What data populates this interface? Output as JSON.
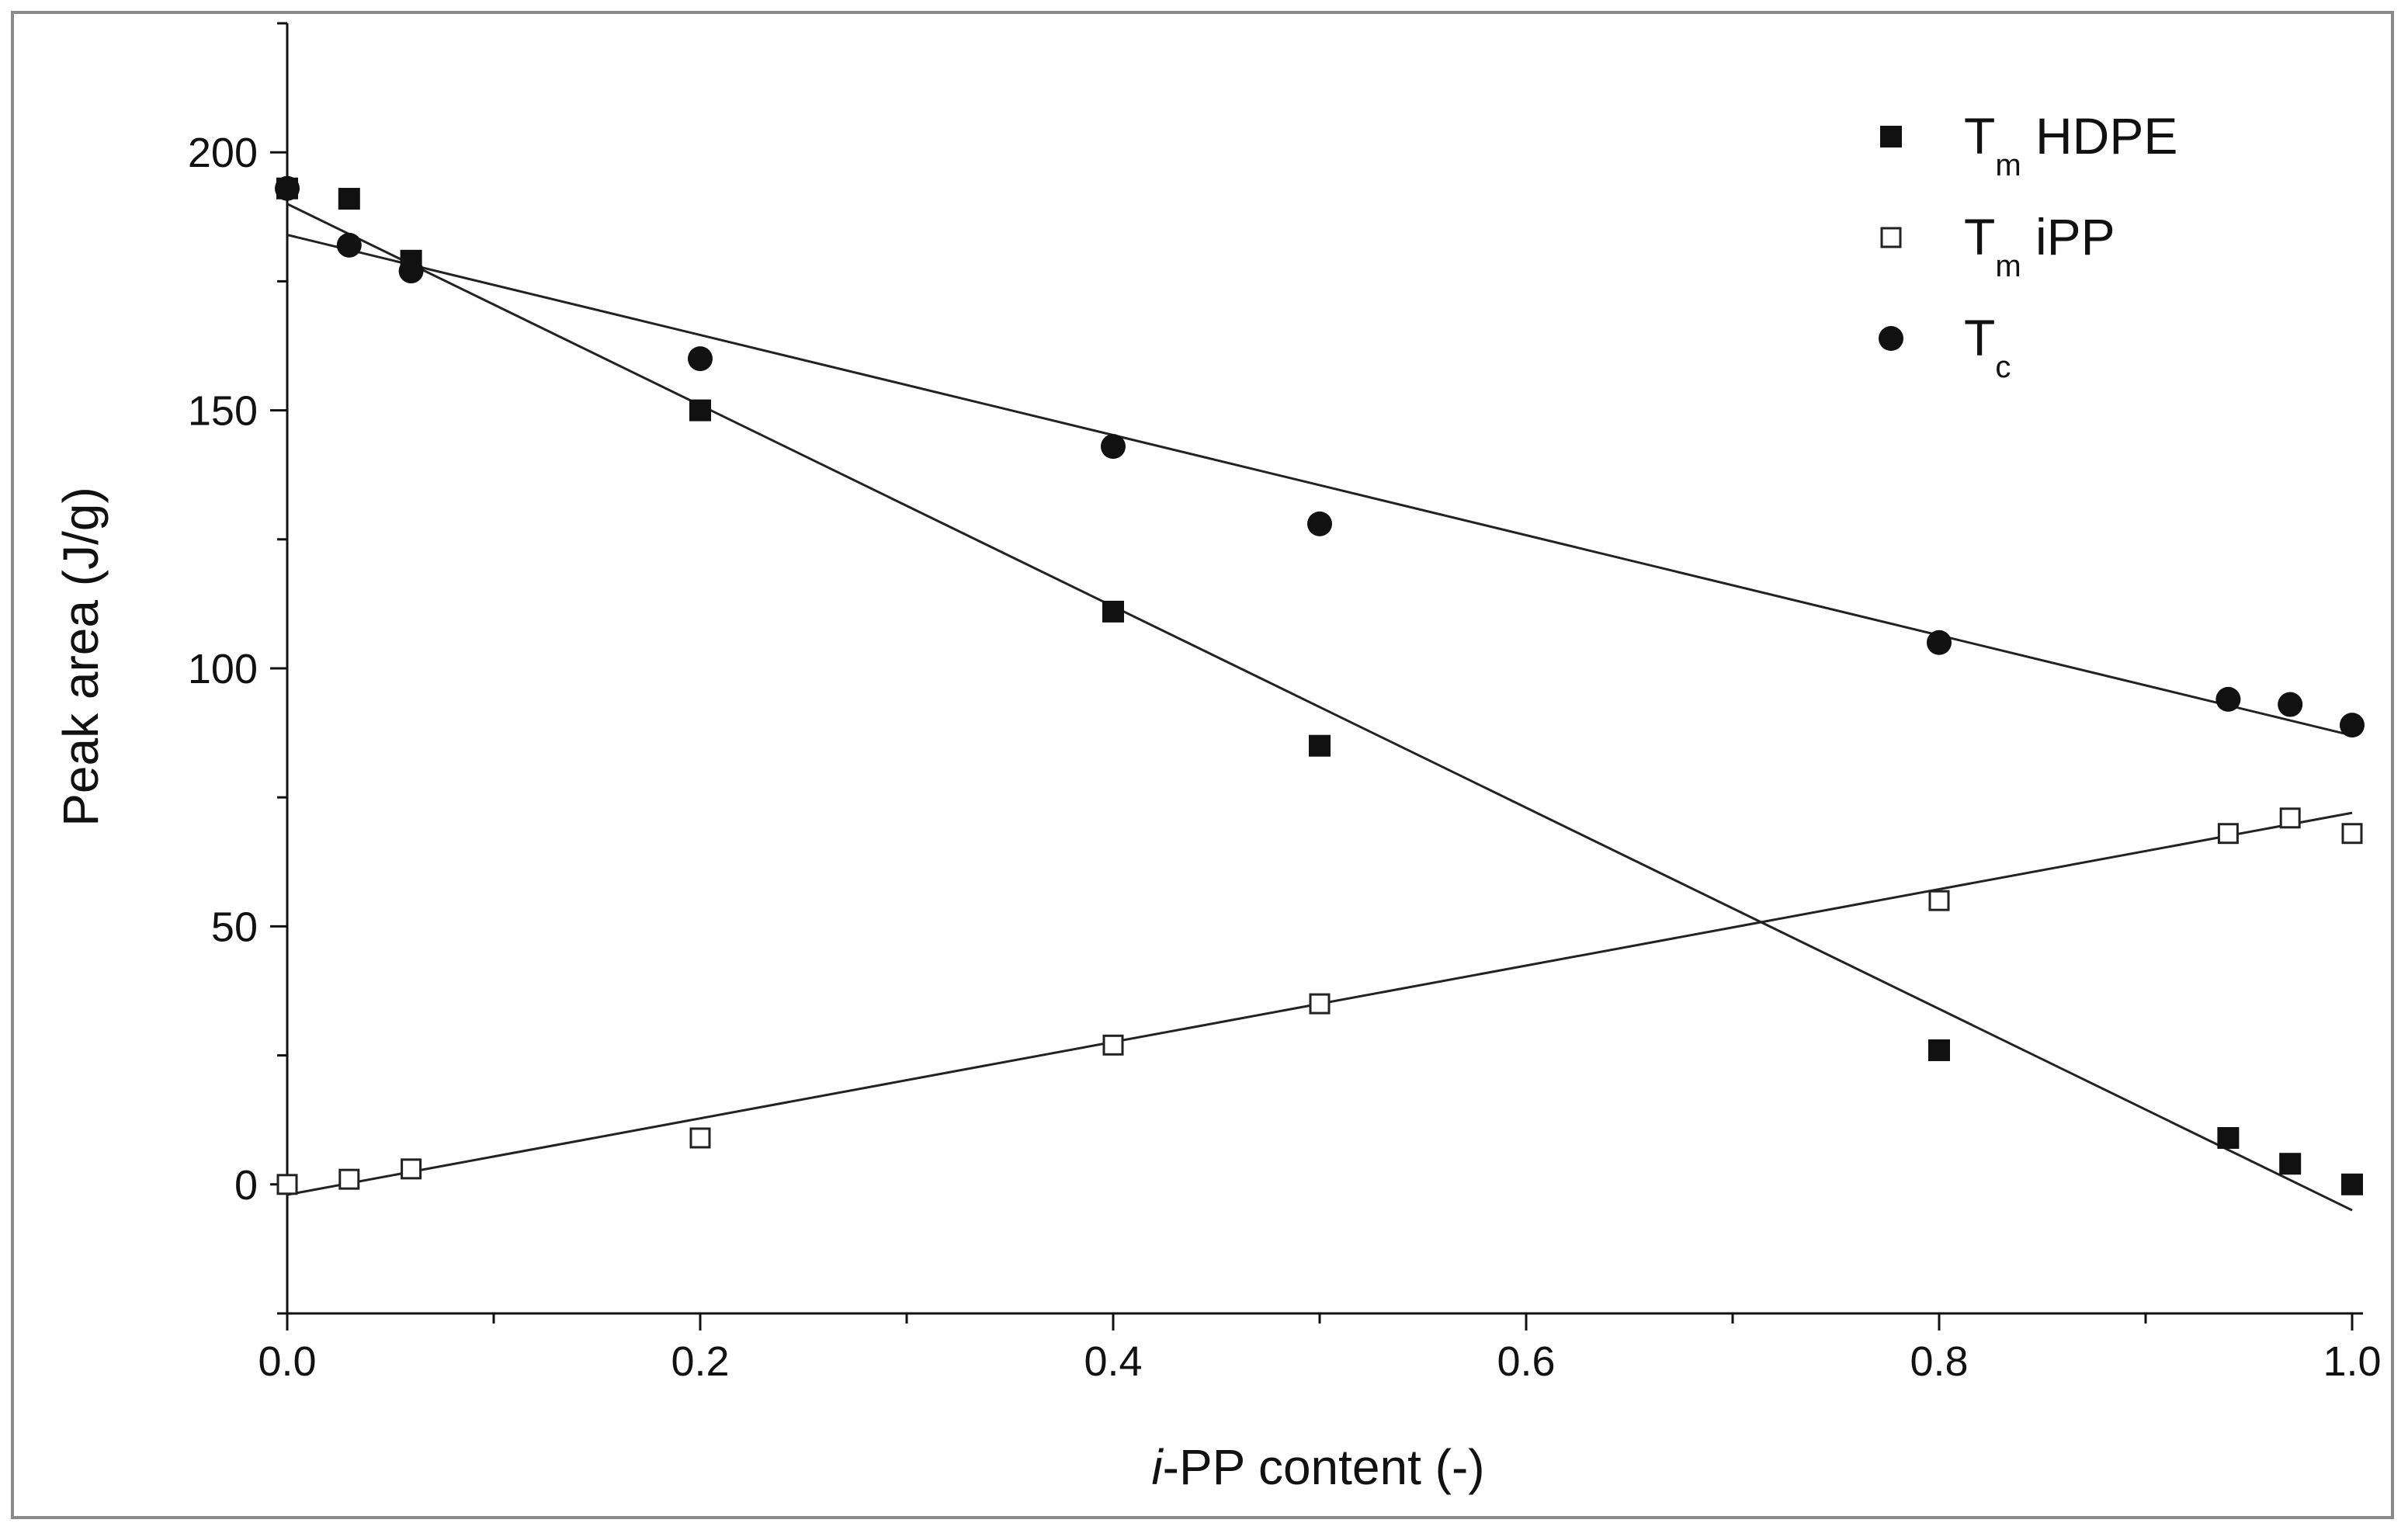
{
  "chart_data": {
    "type": "scatter",
    "xlabel_prefix": "i",
    "xlabel_rest": "-PP content (-)",
    "ylabel": "Peak area (J/g)",
    "xlim": [
      0.0,
      1.0
    ],
    "ylim": [
      -25,
      225
    ],
    "xticks": [
      0.0,
      0.2,
      0.4,
      0.6,
      0.8,
      1.0
    ],
    "xtick_labels": [
      "0.0",
      "0.2",
      "0.4",
      "0.6",
      "0.8",
      "1.0"
    ],
    "yticks": [
      0,
      50,
      100,
      150,
      200
    ],
    "ytick_labels": [
      "0",
      "50",
      "100",
      "150",
      "200"
    ],
    "legend_position": "top-right",
    "series": [
      {
        "key": "tm_hdpe",
        "legend_main": "T",
        "legend_sub": "m",
        "legend_rest": " HDPE",
        "marker": "filled-square",
        "x": [
          0.0,
          0.03,
          0.06,
          0.2,
          0.4,
          0.5,
          0.8,
          0.94,
          0.97,
          1.0
        ],
        "y": [
          193,
          191,
          179,
          150,
          111,
          85,
          26,
          9,
          4,
          0
        ],
        "fit": {
          "x": [
            0.0,
            1.0
          ],
          "y": [
            190,
            -5
          ]
        }
      },
      {
        "key": "tm_ipp",
        "legend_main": "T",
        "legend_sub": "m",
        "legend_rest": " iPP",
        "marker": "open-square",
        "x": [
          0.0,
          0.03,
          0.06,
          0.2,
          0.4,
          0.5,
          0.8,
          0.94,
          0.97,
          1.0
        ],
        "y": [
          0,
          1,
          3,
          9,
          27,
          35,
          55,
          68,
          71,
          68
        ],
        "fit": {
          "x": [
            0.0,
            1.0
          ],
          "y": [
            -2,
            72
          ]
        }
      },
      {
        "key": "tc",
        "legend_main": "T",
        "legend_sub": "c",
        "legend_rest": "",
        "marker": "filled-circle",
        "x": [
          0.0,
          0.03,
          0.06,
          0.2,
          0.4,
          0.5,
          0.8,
          0.94,
          0.97,
          1.0
        ],
        "y": [
          193,
          182,
          177,
          160,
          143,
          128,
          105,
          94,
          93,
          89
        ],
        "fit": {
          "x": [
            0.0,
            1.0
          ],
          "y": [
            184,
            87
          ]
        }
      }
    ]
  }
}
